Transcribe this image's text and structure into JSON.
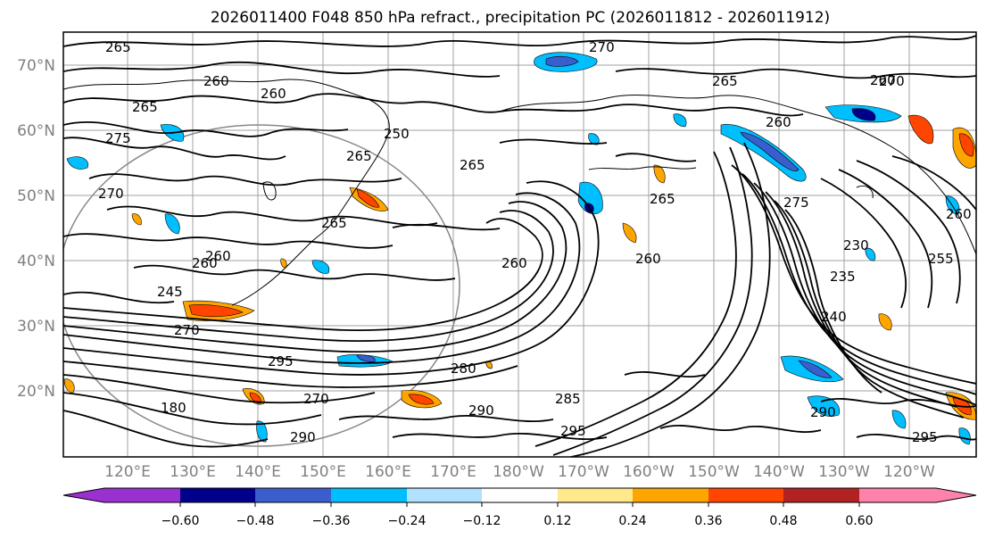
{
  "title": "2026011400 F048 850 hPa refract., precipitation PC (2026011812 - 2026011912)",
  "lat_labels": [
    "70°N",
    "60°N",
    "50°N",
    "40°N",
    "30°N",
    "20°N"
  ],
  "lon_labels": [
    "120°E",
    "130°E",
    "140°E",
    "150°E",
    "160°E",
    "170°E",
    "180°W",
    "170°W",
    "160°W",
    "150°W",
    "140°W",
    "130°W",
    "120°W"
  ],
  "colorbar": {
    "tick_labels": [
      "−0.60",
      "−0.48",
      "−0.36",
      "−0.24",
      "−0.12",
      "0.12",
      "0.24",
      "0.36",
      "0.48",
      "0.60"
    ],
    "colors": [
      "#9b30d0",
      "#00008b",
      "#3a5fcd",
      "#00bfff",
      "#b0e2ff",
      "#ffffff",
      "#ffe98a",
      "#ffa500",
      "#ff4500",
      "#b22222",
      "#ff82ab"
    ]
  },
  "contour_labels": [
    "265",
    "270",
    "260",
    "265",
    "270",
    "260",
    "265",
    "275",
    "250",
    "265",
    "265",
    "260",
    "270",
    "265",
    "260",
    "260",
    "260",
    "245",
    "270",
    "265",
    "260",
    "275",
    "235",
    "230",
    "240",
    "255",
    "260",
    "295",
    "280",
    "290",
    "285",
    "295",
    "290",
    "180",
    "290",
    "295",
    "270",
    "260"
  ]
}
